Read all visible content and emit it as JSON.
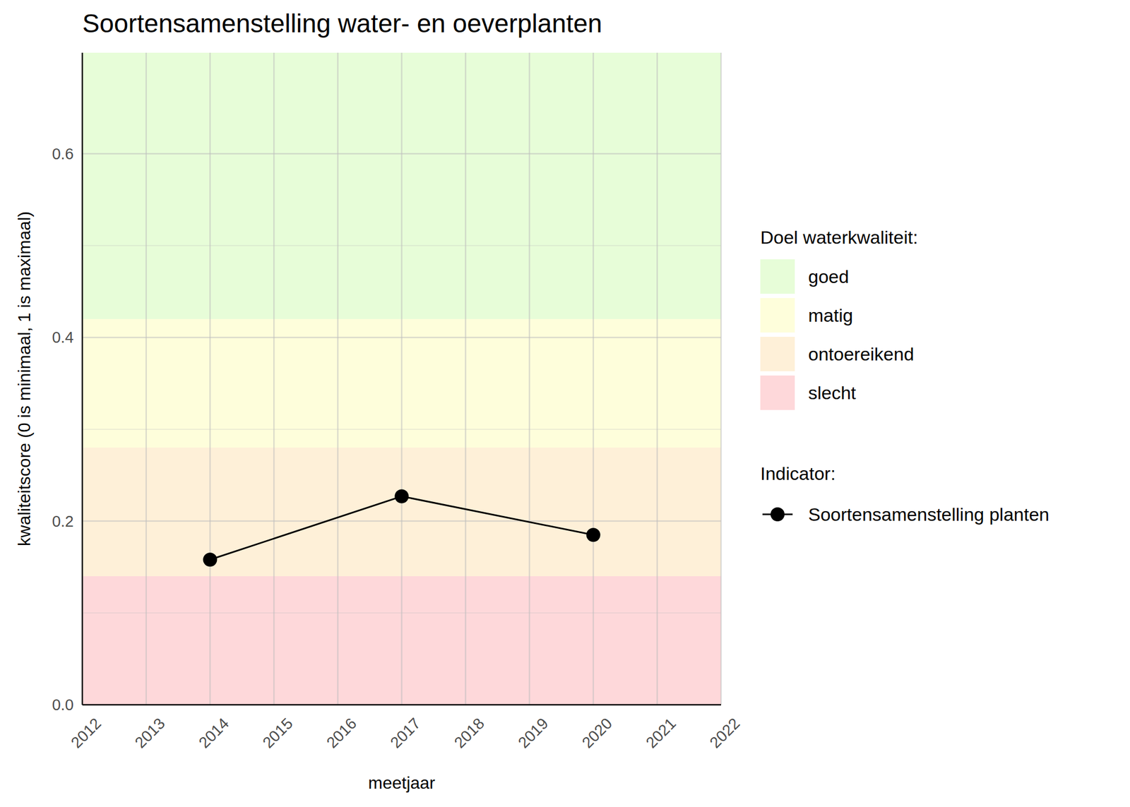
{
  "chart_data": {
    "type": "line",
    "title": "Soortensamenstelling water- en oeverplanten",
    "x_label": "meetjaar",
    "y_label": "kwaliteitscore (0 is minimaal, 1 is maximaal)",
    "x": [
      2014,
      2017,
      2020
    ],
    "series": [
      {
        "name": "Soortensamenstelling planten",
        "color": "#000000",
        "marker": "circle",
        "line_style": "solid",
        "values": [
          0.158,
          0.227,
          0.185
        ]
      }
    ],
    "xlim": [
      2012,
      2022
    ],
    "xticks": [
      2012,
      2013,
      2014,
      2015,
      2016,
      2017,
      2018,
      2019,
      2020,
      2021,
      2022
    ],
    "ylim": [
      0,
      0.71
    ],
    "yticks": [
      {
        "value": 0,
        "label": "0.0"
      },
      0.2,
      0.4,
      0.6
    ],
    "grid": true,
    "bands_title": "Doel waterkwaliteit:",
    "legend_title": "Indicator:",
    "bands": [
      {
        "name": "goed",
        "from": 0.42,
        "to": 1,
        "color": "#e7fdd8"
      },
      {
        "name": "matig",
        "from": 0.28,
        "to": 0.42,
        "color": "#fefedb"
      },
      {
        "name": "ontoereikend",
        "from": 0.14,
        "to": 0.28,
        "color": "#fef0d8"
      },
      {
        "name": "slecht",
        "from": 0,
        "to": 0.14,
        "color": "#fed8da"
      }
    ]
  }
}
